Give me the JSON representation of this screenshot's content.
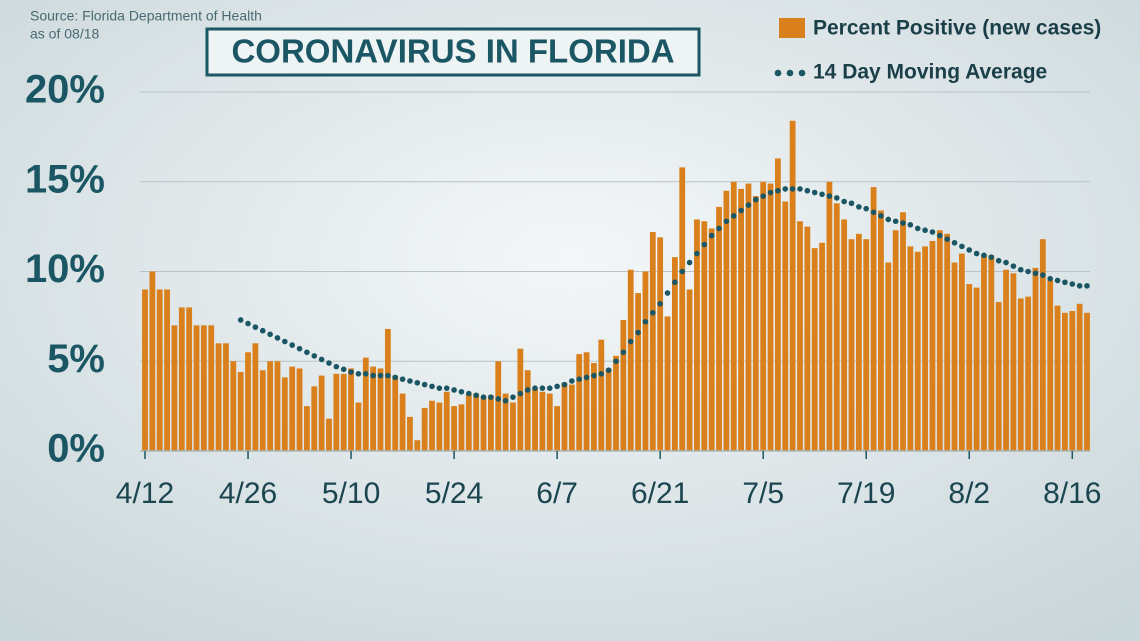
{
  "chart_data": {
    "type": "bar",
    "title": "CORONAVIRUS IN FLORIDA",
    "source": "Source: Florida Department of Health",
    "note": "as of 08/18",
    "categories": [
      "4/12",
      null,
      null,
      null,
      null,
      null,
      null,
      null,
      null,
      null,
      null,
      null,
      null,
      null,
      "4/26",
      null,
      null,
      null,
      null,
      null,
      null,
      null,
      null,
      null,
      null,
      null,
      null,
      null,
      "5/10",
      null,
      null,
      null,
      null,
      null,
      null,
      null,
      null,
      null,
      null,
      null,
      null,
      null,
      "5/24",
      null,
      null,
      null,
      null,
      null,
      null,
      null,
      null,
      null,
      null,
      null,
      null,
      null,
      "6/7",
      null,
      null,
      null,
      null,
      null,
      null,
      null,
      null,
      null,
      null,
      null,
      null,
      null,
      "6/21",
      null,
      null,
      null,
      null,
      null,
      null,
      null,
      null,
      null,
      null,
      null,
      null,
      null,
      "7/5",
      null,
      null,
      null,
      null,
      null,
      null,
      null,
      null,
      null,
      null,
      null,
      null,
      null,
      "7/19",
      null,
      null,
      null,
      null,
      null,
      null,
      null,
      null,
      null,
      null,
      null,
      null,
      null,
      "8/2",
      null,
      null,
      null,
      null,
      null,
      null,
      null,
      null,
      null,
      null,
      null,
      null,
      null,
      "8/16",
      null,
      null
    ],
    "series": [
      {
        "name": "Percent Positive (new cases)",
        "type": "bar",
        "color": "#d9801c",
        "values": [
          9.0,
          10.0,
          9.0,
          9.0,
          7.0,
          8.0,
          8.0,
          7.0,
          7.0,
          7.0,
          6.0,
          6.0,
          5.0,
          4.4,
          5.5,
          6.0,
          4.5,
          5.0,
          5.0,
          4.1,
          4.7,
          4.6,
          2.5,
          3.6,
          4.2,
          1.8,
          4.3,
          4.3,
          4.6,
          2.7,
          5.2,
          4.7,
          4.6,
          6.8,
          4.2,
          3.2,
          1.9,
          0.6,
          2.4,
          2.8,
          2.7,
          3.3,
          2.5,
          2.6,
          3.2,
          3.2,
          3.0,
          3.1,
          5.0,
          3.2,
          2.7,
          5.7,
          4.5,
          3.5,
          3.3,
          3.2,
          2.5,
          3.8,
          3.7,
          5.4,
          5.5,
          4.9,
          6.2,
          4.6,
          5.3,
          7.3,
          10.1,
          8.8,
          10.0,
          12.2,
          11.9,
          7.5,
          10.8,
          15.8,
          9.0,
          12.9,
          12.8,
          12.4,
          13.6,
          14.5,
          15.0,
          14.6,
          14.9,
          14.2,
          15.0,
          14.9,
          16.3,
          13.9,
          18.4,
          12.8,
          12.5,
          11.3,
          11.6,
          15.0,
          13.8,
          12.9,
          11.8,
          12.1,
          11.8,
          14.7,
          13.4,
          10.5,
          12.3,
          13.3,
          11.4,
          11.1,
          11.4,
          11.7,
          12.3,
          12.1,
          10.5,
          11.0,
          9.3,
          9.1,
          10.9,
          10.9,
          8.3,
          10.1,
          9.9,
          8.5,
          8.6,
          10.2,
          11.8,
          9.5,
          8.1,
          7.7,
          7.8,
          8.2,
          7.7
        ]
      },
      {
        "name": "14 Day Moving Average",
        "type": "dotted-line",
        "color": "#1b5664",
        "values": [
          null,
          null,
          null,
          null,
          null,
          null,
          null,
          null,
          null,
          null,
          null,
          null,
          null,
          7.3,
          7.1,
          6.9,
          6.7,
          6.5,
          6.3,
          6.1,
          5.9,
          5.7,
          5.5,
          5.3,
          5.1,
          4.9,
          4.7,
          4.55,
          4.4,
          4.3,
          4.3,
          4.2,
          4.2,
          4.2,
          4.1,
          4.0,
          3.9,
          3.8,
          3.7,
          3.6,
          3.5,
          3.5,
          3.4,
          3.3,
          3.2,
          3.1,
          3.0,
          3.0,
          2.9,
          2.8,
          3.0,
          3.2,
          3.4,
          3.5,
          3.5,
          3.5,
          3.6,
          3.7,
          3.9,
          4.0,
          4.1,
          4.2,
          4.3,
          4.5,
          5.0,
          5.5,
          6.1,
          6.6,
          7.2,
          7.7,
          8.2,
          8.8,
          9.4,
          10.0,
          10.5,
          11.0,
          11.5,
          12.0,
          12.4,
          12.8,
          13.1,
          13.4,
          13.7,
          14.0,
          14.2,
          14.4,
          14.5,
          14.6,
          14.6,
          14.6,
          14.5,
          14.4,
          14.3,
          14.2,
          14.1,
          13.9,
          13.8,
          13.6,
          13.5,
          13.3,
          13.1,
          12.9,
          12.8,
          12.7,
          12.6,
          12.4,
          12.3,
          12.2,
          12.0,
          11.8,
          11.6,
          11.4,
          11.2,
          11.0,
          10.9,
          10.8,
          10.6,
          10.5,
          10.3,
          10.1,
          10.0,
          9.9,
          9.8,
          9.6,
          9.5,
          9.4,
          9.3,
          9.2,
          9.2
        ]
      }
    ],
    "ylim": [
      0,
      20
    ],
    "yticks": [
      {
        "value": 0,
        "label": "0%"
      },
      {
        "value": 5,
        "label": "5%"
      },
      {
        "value": 10,
        "label": "10%"
      },
      {
        "value": 15,
        "label": "15%"
      },
      {
        "value": 20,
        "label": "20%"
      }
    ],
    "grid": true
  }
}
